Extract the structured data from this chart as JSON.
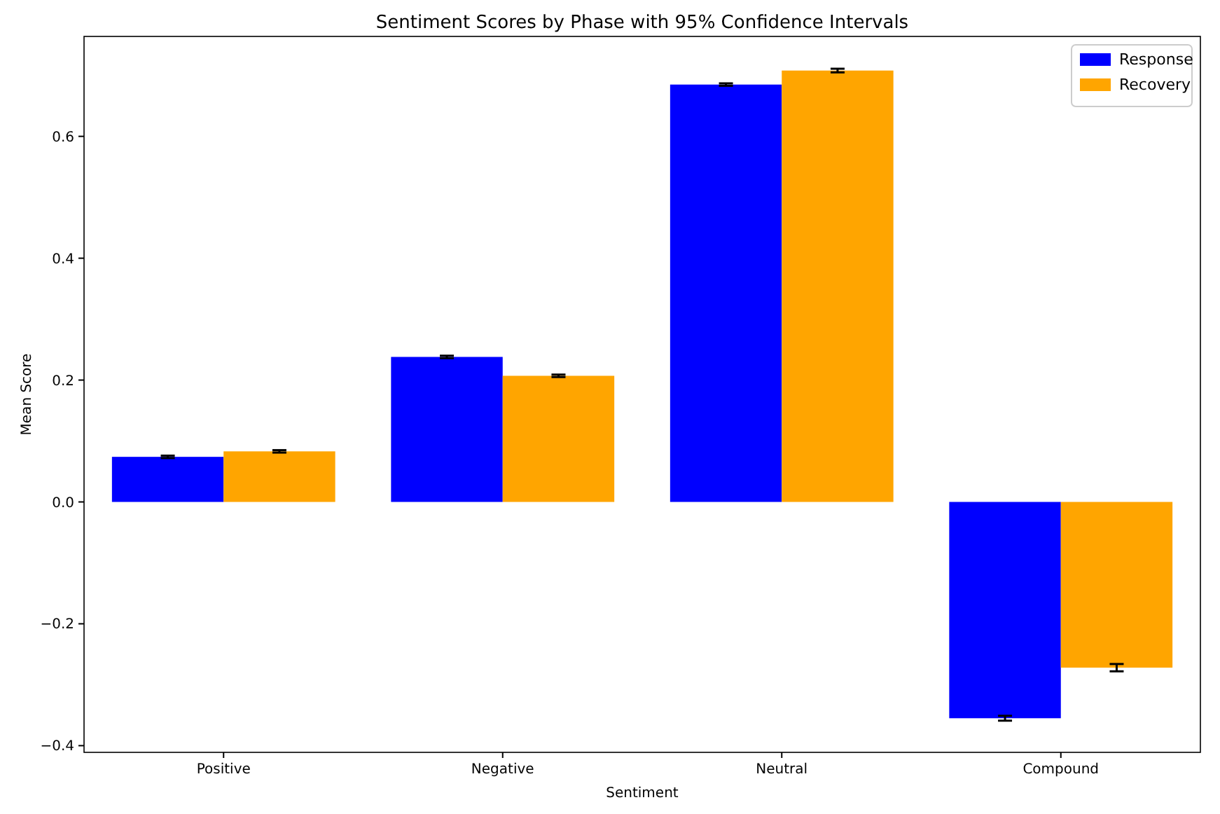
{
  "chart_data": {
    "type": "bar",
    "title": "Sentiment Scores by Phase with 95% Confidence Intervals",
    "xlabel": "Sentiment",
    "ylabel": "Mean Score",
    "categories": [
      "Positive",
      "Negative",
      "Neutral",
      "Compound"
    ],
    "series": [
      {
        "name": "Response",
        "color": "#0000ff",
        "values": [
          0.074,
          0.238,
          0.685,
          -0.355
        ],
        "errors": [
          0.002,
          0.002,
          0.002,
          0.004
        ]
      },
      {
        "name": "Recovery",
        "color": "#ffa500",
        "values": [
          0.083,
          0.207,
          0.708,
          -0.272
        ],
        "errors": [
          0.002,
          0.002,
          0.003,
          0.006
        ]
      }
    ],
    "ylim": [
      -0.411,
      0.764
    ],
    "yticks": [
      {
        "value": -0.4,
        "label": "−0.4"
      },
      {
        "value": -0.2,
        "label": "−0.2"
      },
      {
        "value": 0,
        "label": "0.0"
      },
      0.2,
      0.4,
      0.6
    ],
    "legend": "top right",
    "grid": false
  }
}
